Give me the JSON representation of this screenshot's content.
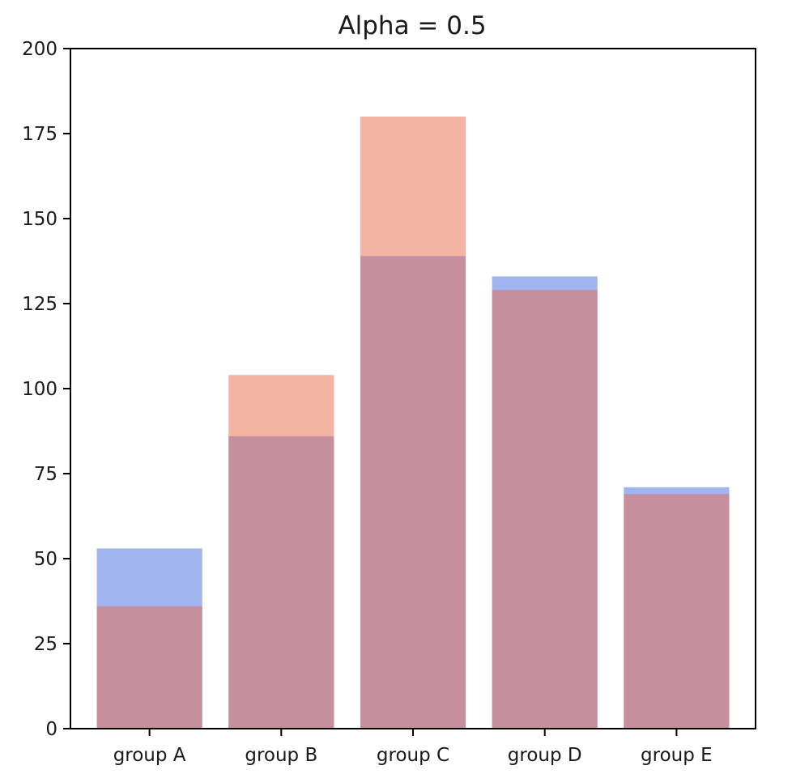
{
  "chart_data": {
    "type": "bar",
    "title": "Alpha = 0.5",
    "xlabel": "",
    "ylabel": "",
    "categories": [
      "group A",
      "group B",
      "group C",
      "group D",
      "group E"
    ],
    "series": [
      {
        "values": [
          53,
          86,
          139,
          133,
          71
        ],
        "color": "#4169e1",
        "opacity": 0.5
      },
      {
        "values": [
          36,
          104,
          180,
          129,
          69
        ],
        "color": "#e9694a",
        "opacity": 0.5
      }
    ],
    "ylim": [
      0,
      200
    ],
    "yticks": [
      0,
      25,
      50,
      75,
      100,
      125,
      150,
      175,
      200
    ],
    "grid": false,
    "legend": "none"
  }
}
